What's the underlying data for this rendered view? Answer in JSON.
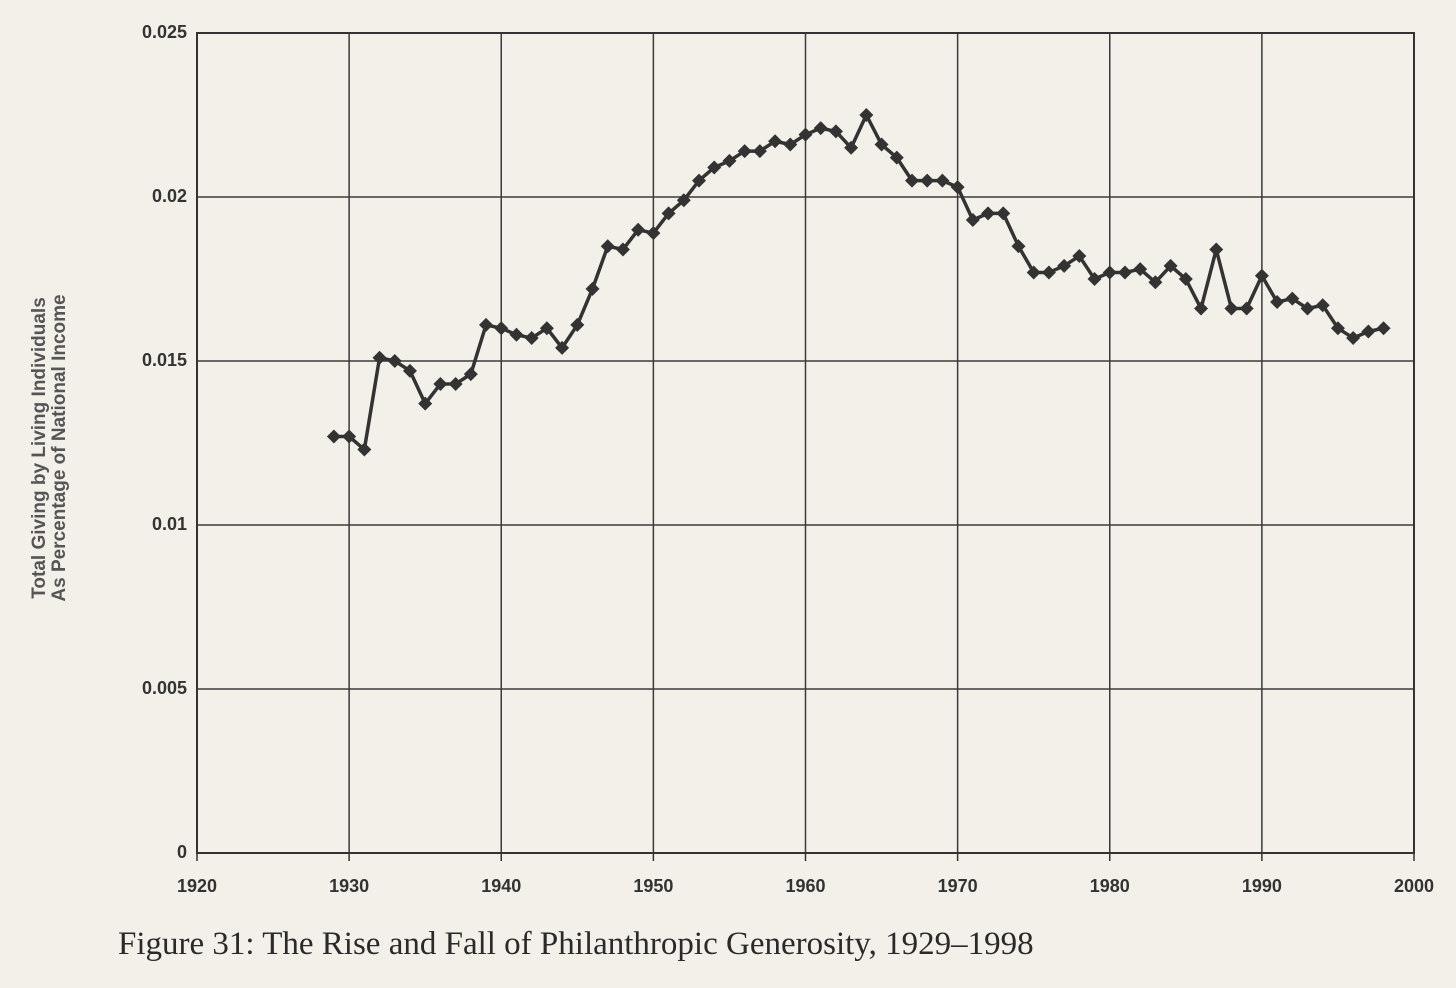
{
  "chart_data": {
    "type": "line",
    "title": "Figure 31: The Rise and Fall of Philanthropic Generosity, 1929–1998",
    "ylabel": [
      "Total Giving by Living Individuals",
      "As Percentage of National Income"
    ],
    "x": [
      1929,
      1930,
      1931,
      1932,
      1933,
      1934,
      1935,
      1936,
      1937,
      1938,
      1939,
      1940,
      1941,
      1942,
      1943,
      1944,
      1945,
      1946,
      1947,
      1948,
      1949,
      1950,
      1951,
      1952,
      1953,
      1954,
      1955,
      1956,
      1957,
      1958,
      1959,
      1960,
      1961,
      1962,
      1963,
      1964,
      1965,
      1966,
      1967,
      1968,
      1969,
      1970,
      1971,
      1972,
      1973,
      1974,
      1975,
      1976,
      1977,
      1978,
      1979,
      1980,
      1981,
      1982,
      1983,
      1984,
      1985,
      1986,
      1987,
      1988,
      1989,
      1990,
      1991,
      1992,
      1993,
      1994,
      1995,
      1996,
      1997,
      1998
    ],
    "values": [
      0.0127,
      0.0127,
      0.0123,
      0.0151,
      0.015,
      0.0147,
      0.0137,
      0.0143,
      0.0143,
      0.0146,
      0.0161,
      0.016,
      0.0158,
      0.0157,
      0.016,
      0.0154,
      0.0161,
      0.0172,
      0.0185,
      0.0184,
      0.019,
      0.0189,
      0.0195,
      0.0199,
      0.0205,
      0.0209,
      0.0211,
      0.0214,
      0.0214,
      0.0217,
      0.0216,
      0.0219,
      0.0221,
      0.022,
      0.0215,
      0.0225,
      0.0216,
      0.0212,
      0.0205,
      0.0205,
      0.0205,
      0.0203,
      0.0193,
      0.0195,
      0.0195,
      0.0185,
      0.0177,
      0.0177,
      0.0179,
      0.0182,
      0.0175,
      0.0177,
      0.0177,
      0.0178,
      0.0174,
      0.0179,
      0.0175,
      0.0166,
      0.0184,
      0.0166,
      0.0166,
      0.0176,
      0.0168,
      0.0169,
      0.0166,
      0.0167,
      0.016,
      0.0157,
      0.0159,
      0.016
    ],
    "color": "#333333",
    "marker": "diamond",
    "xlim": [
      1920,
      2000
    ],
    "xticks": [
      1920,
      1930,
      1940,
      1950,
      1960,
      1970,
      1980,
      1990,
      2000
    ],
    "ylim": [
      0,
      0.025
    ],
    "yticks": [
      0,
      0.005,
      0.01,
      0.015,
      0.02,
      0.025
    ],
    "grid": true
  }
}
